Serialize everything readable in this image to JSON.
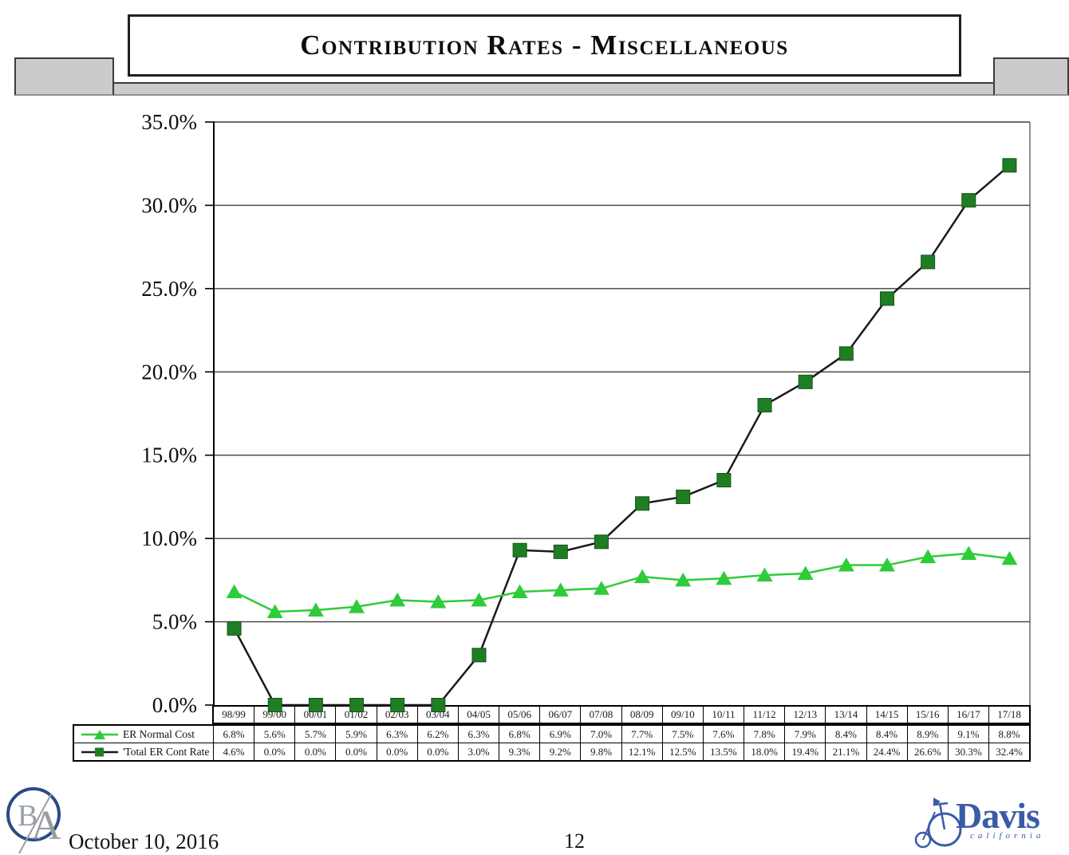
{
  "page": {
    "title": "Contribution Rates - Miscellaneous",
    "footer": {
      "date": "October 10, 2016",
      "page_number": "12"
    },
    "logos": {
      "ba_monogram": {
        "letter_b": "B",
        "letter_a": "A"
      },
      "davis": {
        "name": "Davis",
        "subtitle": "california"
      }
    }
  },
  "colors": {
    "normal_cost_green": "#2ecc39",
    "total_rate_square_green": "#1f7e23",
    "total_rate_line_black": "#1a1a1a",
    "banner_gray": "#cbcbcb",
    "davis_blue": "#3a5ba6",
    "ba_navy": "#2c4a86",
    "gridline_gray": "#3f3f3f"
  },
  "chart_data": {
    "type": "line",
    "title": "Contribution Rates - Miscellaneous",
    "categories": [
      "98/99",
      "99/00",
      "00/01",
      "01/02",
      "02/03",
      "03/04",
      "04/05",
      "05/06",
      "06/07",
      "07/08",
      "08/09",
      "09/10",
      "10/11",
      "11/12",
      "12/13",
      "13/14",
      "14/15",
      "15/16",
      "16/17",
      "17/18"
    ],
    "series": [
      {
        "name": "ER Normal Cost",
        "marker": "triangle",
        "marker_color": "#2ecc39",
        "line_color": "#2ecc39",
        "values": [
          6.8,
          5.6,
          5.7,
          5.9,
          6.3,
          6.2,
          6.3,
          6.8,
          6.9,
          7.0,
          7.7,
          7.5,
          7.6,
          7.8,
          7.9,
          8.4,
          8.4,
          8.9,
          9.1,
          8.8
        ]
      },
      {
        "name": "'Total ER Cont Rate",
        "marker": "square",
        "marker_color": "#1f7e23",
        "line_color": "#1a1a1a",
        "values": [
          4.6,
          0.0,
          0.0,
          0.0,
          0.0,
          0.0,
          3.0,
          9.3,
          9.2,
          9.8,
          12.1,
          12.5,
          13.5,
          18.0,
          19.4,
          21.1,
          24.4,
          26.6,
          30.3,
          32.4
        ]
      }
    ],
    "ylim": [
      0,
      35
    ],
    "ytick_step": 5,
    "yticks": [
      "0.0%",
      "5.0%",
      "10.0%",
      "15.0%",
      "20.0%",
      "25.0%",
      "30.0%",
      "35.0%"
    ],
    "value_format": "one-decimal-percent",
    "grid": true,
    "legend_position": "table-left"
  }
}
